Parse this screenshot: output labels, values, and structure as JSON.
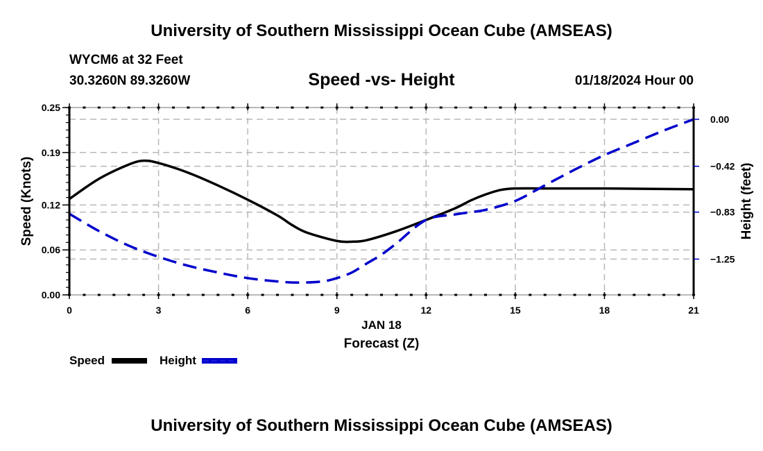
{
  "header": {
    "main_title": "University of Southern Mississippi Ocean Cube (AMSEAS)",
    "station": "WYCM6 at 32 Feet",
    "coords": "30.3260N  89.3260W",
    "datetime": "01/18/2024 Hour 00",
    "footer_title": "University of Southern Mississippi Ocean Cube (AMSEAS)"
  },
  "chart_data": {
    "type": "line",
    "title": "Speed -vs- Height",
    "xlabel": "Forecast (Z)",
    "xlabel_date": "JAN 18",
    "ylabel": "Speed (Knots)",
    "y2label": "Height (feet)",
    "xlim": [
      0,
      21
    ],
    "ylim": [
      0,
      0.25
    ],
    "y2lim": [
      -1.57,
      0.105
    ],
    "x_ticks": [
      0,
      3,
      6,
      9,
      12,
      15,
      18,
      21
    ],
    "x_tick_labels": [
      "0",
      "3",
      "6",
      "9",
      "12",
      "15",
      "18",
      "21"
    ],
    "y_ticks": [
      0,
      0.06,
      0.12,
      0.19,
      0.25
    ],
    "y_tick_labels": [
      "0.00",
      "0.06",
      "0.12",
      "0.19",
      "0.25"
    ],
    "y2_ticks": [
      0,
      -0.42,
      -0.83,
      -1.25
    ],
    "y2_tick_labels": [
      "0.00",
      "−0.42",
      "−0.83",
      "−1.25"
    ],
    "grid": true,
    "legend_position": "bottom-left",
    "series": [
      {
        "name": "Speed",
        "axis": "left",
        "color": "#000000",
        "style": "solid",
        "x": [
          0,
          1,
          2,
          2.5,
          3,
          4,
          5,
          6,
          7,
          7.5,
          8,
          9,
          9.5,
          10,
          11,
          12,
          13,
          13.5,
          14,
          14.5,
          15,
          16,
          18,
          21
        ],
        "values": [
          0.128,
          0.155,
          0.174,
          0.179,
          0.176,
          0.163,
          0.146,
          0.127,
          0.106,
          0.093,
          0.083,
          0.072,
          0.071,
          0.073,
          0.085,
          0.1,
          0.116,
          0.126,
          0.134,
          0.14,
          0.142,
          0.142,
          0.142,
          0.141
        ]
      },
      {
        "name": "Height",
        "axis": "right",
        "color": "#0000cc",
        "style": "dashed",
        "x": [
          0,
          1,
          2,
          3,
          4,
          5,
          6,
          7,
          7.7,
          8.5,
          9,
          9.5,
          10,
          10.5,
          11,
          12,
          13,
          13.5,
          14,
          15,
          16,
          17,
          18,
          19,
          20,
          21
        ],
        "values": [
          -0.845,
          -1.0,
          -1.13,
          -1.23,
          -1.31,
          -1.37,
          -1.42,
          -1.45,
          -1.46,
          -1.45,
          -1.42,
          -1.37,
          -1.29,
          -1.21,
          -1.11,
          -0.9,
          -0.85,
          -0.83,
          -0.81,
          -0.73,
          -0.59,
          -0.45,
          -0.32,
          -0.21,
          -0.1,
          0.0
        ]
      }
    ]
  }
}
